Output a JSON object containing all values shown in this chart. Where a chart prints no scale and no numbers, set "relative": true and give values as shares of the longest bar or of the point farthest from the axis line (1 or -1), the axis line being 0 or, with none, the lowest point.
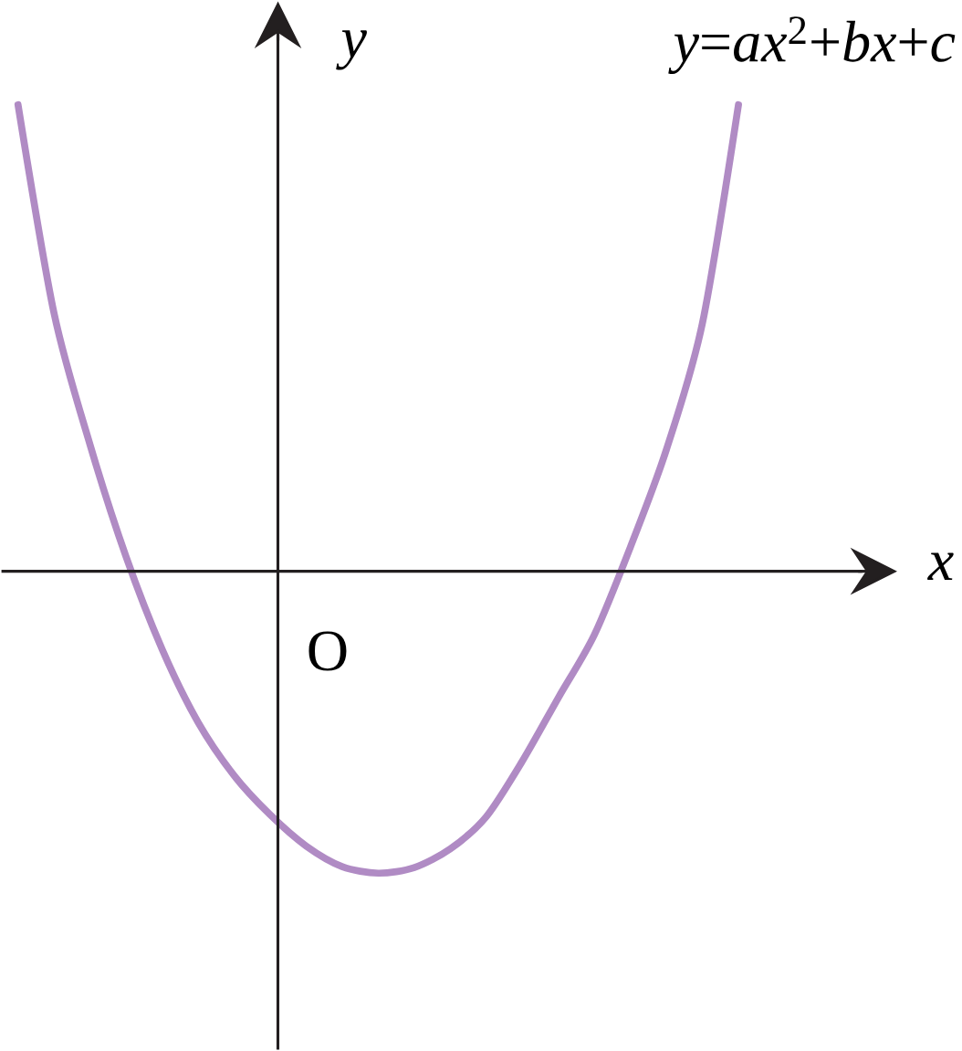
{
  "chart_data": {
    "type": "line",
    "relative": true,
    "xlabel": "*x*",
    "ylabel": "*y*",
    "annotations": [
      "O"
    ],
    "categories": [
      null,
      null,
      null,
      null,
      null,
      null,
      null,
      null,
      null,
      null,
      null,
      null,
      null,
      null,
      null,
      null,
      null,
      null,
      null,
      null,
      null
    ],
    "series": [
      {
        "name": "*y*=*ax*$^{2}$+*bx*+*c*",
        "color": "#b08bc4",
        "values": [
          1,
          0.553,
          0.271,
          0.031,
          -0.167,
          -0.324,
          -0.438,
          -0.522,
          -0.589,
          -0.633,
          -0.647,
          -0.635,
          -0.595,
          -0.526,
          -0.407,
          -0.271,
          -0.136,
          0.052,
          0.261,
          0.532,
          1
        ]
      }
    ]
  }
}
